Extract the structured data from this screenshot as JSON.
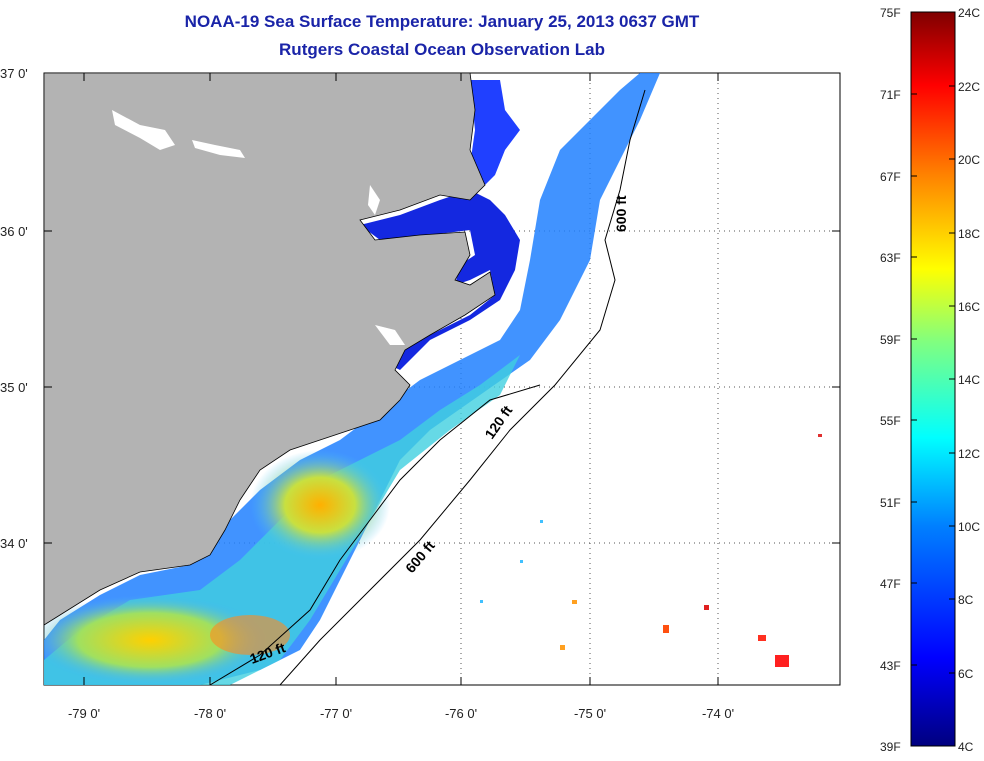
{
  "title": {
    "line1": "NOAA-19 Sea Surface Temperature:  January 25, 2013 0637 GMT",
    "line2": "Rutgers Coastal Ocean Observation Lab"
  },
  "map": {
    "lat_labels": [
      "37 0'",
      "36 0'",
      "35 0'",
      "34 0'"
    ],
    "lon_labels": [
      "-79 0'",
      "-78 0'",
      "-77 0'",
      "-76 0'",
      "-75 0'",
      "-74 0'"
    ],
    "contour_labels": [
      "600 ft",
      "120 ft",
      "600 ft",
      "120 ft"
    ],
    "colors": {
      "land": "#b3b3b3",
      "inland_water": "#ffffff",
      "coastline": "#000000"
    }
  },
  "colorbar": {
    "fahrenheit_labels": [
      "75F",
      "71F",
      "67F",
      "63F",
      "59F",
      "55F",
      "51F",
      "47F",
      "43F",
      "39F"
    ],
    "celsius_labels": [
      "24C",
      "22C",
      "20C",
      "18C",
      "16C",
      "14C",
      "12C",
      "10C",
      "8C",
      "6C",
      "4C"
    ],
    "colormap": [
      "#00007f",
      "#0000ff",
      "#0080ff",
      "#00ffff",
      "#80ff80",
      "#ffff00",
      "#ff8000",
      "#ff0000",
      "#7f0000"
    ]
  }
}
